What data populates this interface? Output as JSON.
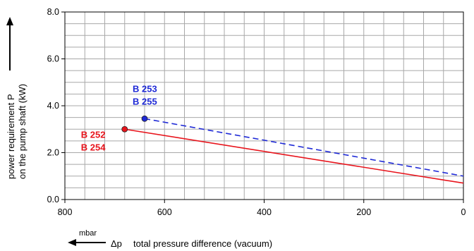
{
  "chart_data": {
    "type": "line",
    "xlabel": "total pressure difference (vacuum)",
    "xlabel_symbol": "Δp",
    "x_unit": "mbar",
    "ylabel_line1": "power requirement P",
    "ylabel_line2": "on the pump shaft (kW)",
    "xlim": [
      800,
      0
    ],
    "ylim": [
      0,
      8
    ],
    "x_ticks": [
      800,
      600,
      400,
      200,
      0
    ],
    "y_ticks": [
      0,
      2,
      4,
      6,
      8
    ],
    "x_tick_labels": [
      "800",
      "600",
      "400",
      "200",
      "0"
    ],
    "y_tick_labels": [
      "0.0",
      "2.0",
      "4.0",
      "6.0",
      "8.0"
    ],
    "grid": true,
    "series": [
      {
        "labels": [
          "B 252",
          "B 254"
        ],
        "color": "#e8141c",
        "line_style": "solid",
        "x": [
          680,
          0
        ],
        "y": [
          3.0,
          0.7
        ]
      },
      {
        "labels": [
          "B 253",
          "B 255"
        ],
        "color": "#1f2ad6",
        "line_style": "dashed",
        "x": [
          640,
          0
        ],
        "y": [
          3.45,
          1.0
        ]
      }
    ]
  }
}
